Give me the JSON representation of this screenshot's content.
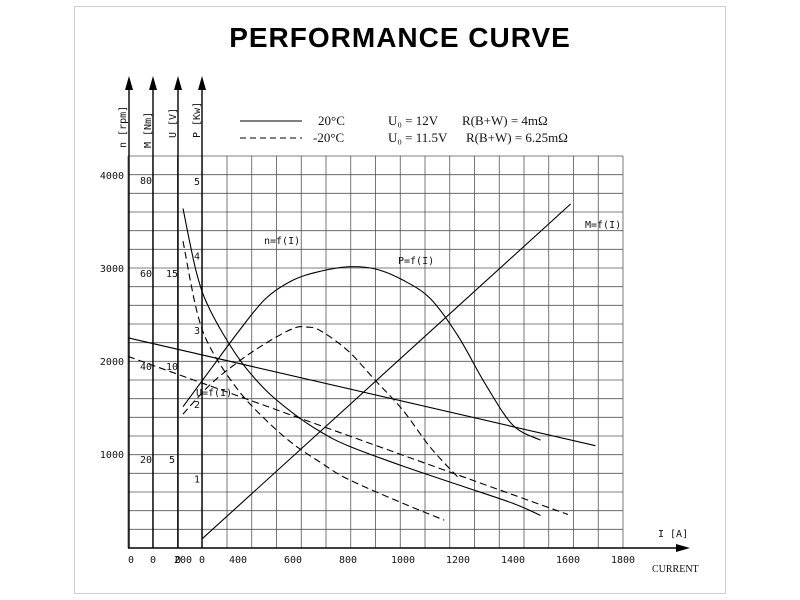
{
  "title": "PERFORMANCE CURVE",
  "legend": {
    "solid": {
      "temp": "20°C",
      "voltage": "U₀ = 12V",
      "resistance": "R(B+W) = 4mΩ"
    },
    "dashed": {
      "temp": "-20°C",
      "voltage": "U₀ = 11.5V",
      "resistance": "R(B+W) = 6.25mΩ"
    }
  },
  "axes": {
    "n": {
      "label": "n [rpm]",
      "ticks": [
        "4000",
        "3000",
        "2000",
        "1000",
        "0"
      ]
    },
    "M": {
      "label": "M [Nm]",
      "ticks": [
        "80",
        "60",
        "40",
        "20",
        "0"
      ]
    },
    "U": {
      "label": "U [V]",
      "ticks": [
        "15",
        "10",
        "5",
        "0"
      ]
    },
    "P": {
      "label": "P [Kw]",
      "ticks": [
        "5",
        "4",
        "3",
        "2",
        "1",
        "0"
      ]
    },
    "x": {
      "label": "I [A]",
      "sublabel": "CURRENT",
      "ticks": [
        "0",
        "200",
        "400",
        "600",
        "800",
        "1000",
        "1200",
        "1400",
        "1600",
        "1800"
      ]
    }
  },
  "curve_labels": {
    "n": "n=f(I)",
    "P": "P=f(I)",
    "M": "M=f(I)",
    "U": "U=f(I)"
  },
  "chart_data": {
    "type": "line",
    "title": "PERFORMANCE CURVE",
    "xlabel": "I [A]",
    "xlim": [
      0,
      1800
    ],
    "ylim_n": [
      0,
      4000
    ],
    "ylim_M": [
      0,
      80
    ],
    "ylim_U": [
      0,
      20
    ],
    "ylim_P": [
      0,
      5
    ],
    "series": [
      {
        "name": "n=f(I)",
        "condition": "20°C",
        "style": "solid",
        "axis": "n",
        "x": [
          200,
          250,
          300,
          400,
          500,
          600,
          700,
          800,
          1000,
          1200,
          1400,
          1500
        ],
        "y": [
          3650,
          2950,
          2550,
          2050,
          1700,
          1450,
          1250,
          1100,
          880,
          680,
          480,
          350
        ]
      },
      {
        "name": "n=f(I)",
        "condition": "-20°C",
        "style": "dashed",
        "axis": "n",
        "x": [
          200,
          250,
          300,
          400,
          500,
          600,
          700,
          800,
          1000,
          1150
        ],
        "y": [
          3300,
          2550,
          2150,
          1700,
          1380,
          1120,
          920,
          740,
          480,
          300
        ]
      },
      {
        "name": "P=f(I)",
        "condition": "20°C",
        "style": "solid",
        "axis": "P",
        "x": [
          200,
          300,
          400,
          500,
          600,
          700,
          800,
          900,
          1000,
          1100,
          1200,
          1300,
          1400,
          1500
        ],
        "y": [
          1.9,
          2.4,
          2.9,
          3.35,
          3.6,
          3.72,
          3.78,
          3.75,
          3.6,
          3.35,
          2.85,
          2.2,
          1.65,
          1.45
        ]
      },
      {
        "name": "P=f(I)",
        "condition": "-20°C",
        "style": "dashed",
        "axis": "P",
        "x": [
          200,
          300,
          400,
          500,
          600,
          650,
          700,
          800,
          900,
          1000,
          1100,
          1200
        ],
        "y": [
          1.8,
          2.2,
          2.5,
          2.75,
          2.95,
          2.97,
          2.92,
          2.65,
          2.25,
          1.85,
          1.35,
          0.95
        ]
      },
      {
        "name": "M=f(I)",
        "condition": "20°C",
        "style": "solid",
        "axis": "M",
        "x": [
          270,
          1610
        ],
        "y": [
          2,
          74
        ]
      },
      {
        "name": "U=f(I)",
        "condition": "20°C",
        "style": "solid",
        "axis": "U",
        "x": [
          0,
          1700
        ],
        "y": [
          11.3,
          5.5
        ]
      },
      {
        "name": "U=f(I)",
        "condition": "-20°C",
        "style": "dashed",
        "axis": "U",
        "x": [
          0,
          1600
        ],
        "y": [
          10.3,
          1.8
        ]
      }
    ]
  }
}
